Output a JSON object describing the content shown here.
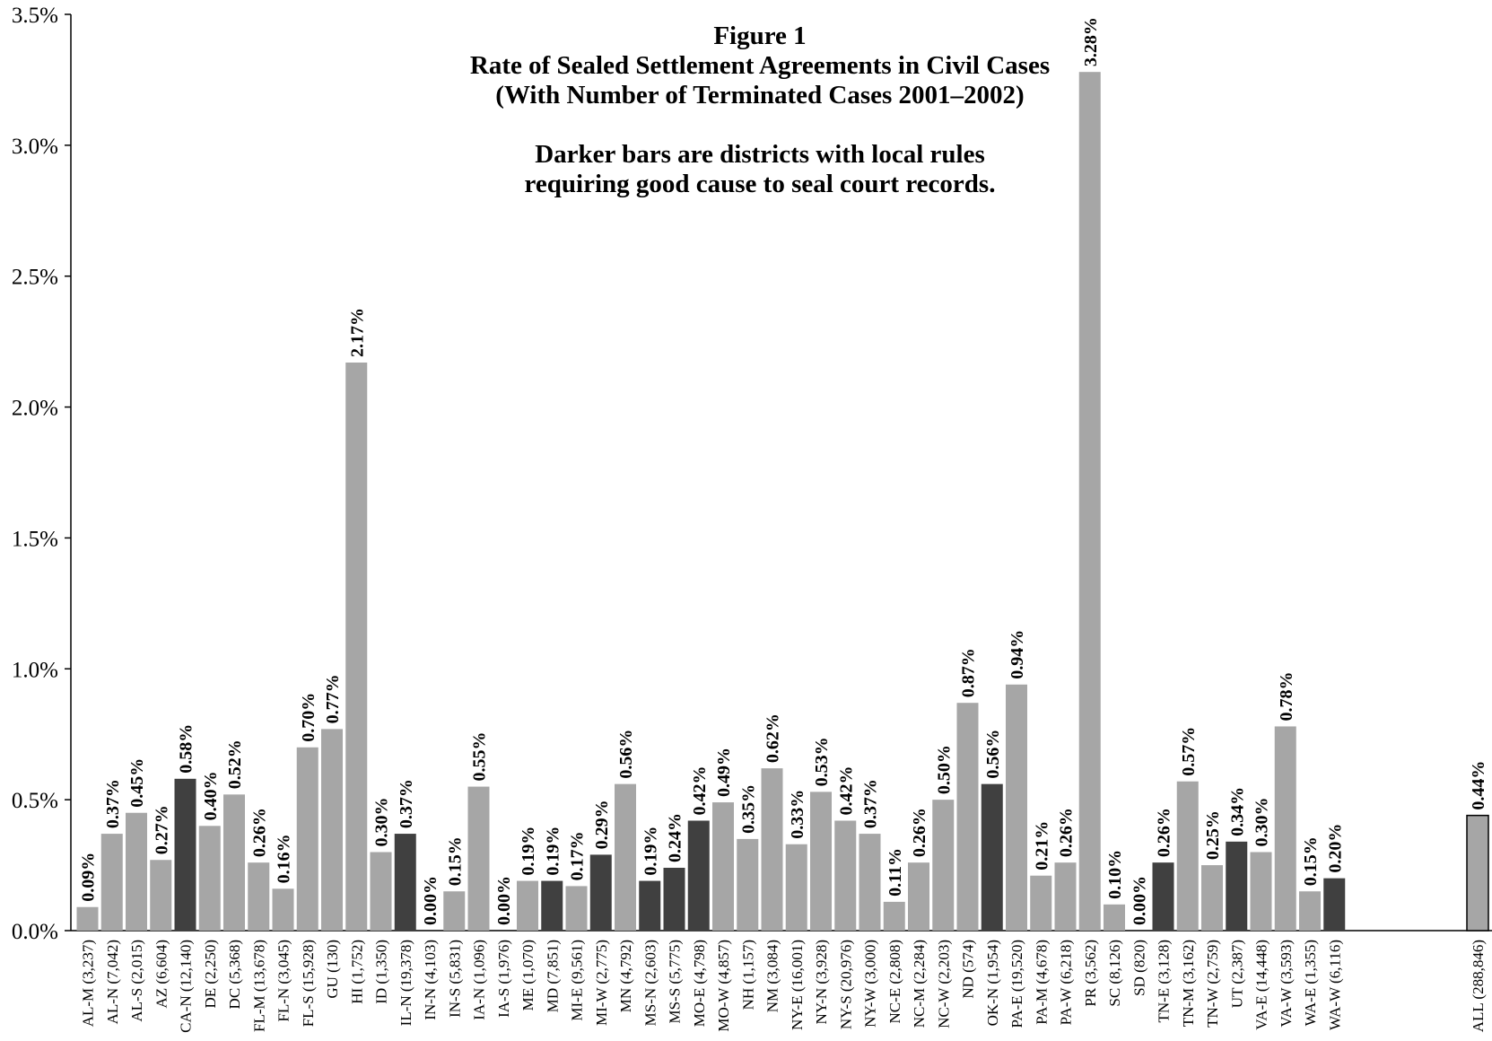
{
  "chart_data": {
    "type": "bar",
    "title_lines": [
      "Figure 1",
      "Rate of Sealed Settlement Agreements in Civil Cases",
      "(With Number of Terminated Cases 2001–2002)",
      "",
      "Darker bars are districts with local rules",
      "requiring good cause to seal court records."
    ],
    "xlabel": "",
    "ylabel": "",
    "ylim": [
      0,
      3.5
    ],
    "y_ticks": [
      "0.0%",
      "0.5%",
      "1.0%",
      "1.5%",
      "2.0%",
      "2.5%",
      "3.0%",
      "3.5%"
    ],
    "grid": false,
    "legend": "none",
    "colors": {
      "light": "#a6a6a6",
      "dark": "#404040",
      "all_fill": "#a6a6a6",
      "all_border": "#000000"
    },
    "bars": [
      {
        "label": "AL-M (3,237)",
        "value": 0.09,
        "text": "0.09%",
        "dark": false
      },
      {
        "label": "AL-N (7,042)",
        "value": 0.37,
        "text": "0.37%",
        "dark": false
      },
      {
        "label": "AL-S (2,015)",
        "value": 0.45,
        "text": "0.45%",
        "dark": false
      },
      {
        "label": "AZ (6,604)",
        "value": 0.27,
        "text": "0.27%",
        "dark": false
      },
      {
        "label": "CA-N (12,140)",
        "value": 0.58,
        "text": "0.58%",
        "dark": true
      },
      {
        "label": "DE (2,250)",
        "value": 0.4,
        "text": "0.40%",
        "dark": false
      },
      {
        "label": "DC (5,368)",
        "value": 0.52,
        "text": "0.52%",
        "dark": false
      },
      {
        "label": "FL-M (13,678)",
        "value": 0.26,
        "text": "0.26%",
        "dark": false
      },
      {
        "label": "FL-N (3,045)",
        "value": 0.16,
        "text": "0.16%",
        "dark": false
      },
      {
        "label": "FL-S (15,928)",
        "value": 0.7,
        "text": "0.70%",
        "dark": false
      },
      {
        "label": "GU (130)",
        "value": 0.77,
        "text": "0.77%",
        "dark": false
      },
      {
        "label": "HI (1,752)",
        "value": 2.17,
        "text": "2.17%",
        "dark": false
      },
      {
        "label": "ID (1,350)",
        "value": 0.3,
        "text": "0.30%",
        "dark": false
      },
      {
        "label": "IL-N (19,378)",
        "value": 0.37,
        "text": "0.37%",
        "dark": true
      },
      {
        "label": "IN-N (4,103)",
        "value": 0.0,
        "text": "0.00%",
        "dark": false
      },
      {
        "label": "IN-S (5,831)",
        "value": 0.15,
        "text": "0.15%",
        "dark": false
      },
      {
        "label": "IA-N (1,096)",
        "value": 0.55,
        "text": "0.55%",
        "dark": false
      },
      {
        "label": "IA-S (1,976)",
        "value": 0.0,
        "text": "0.00%",
        "dark": false
      },
      {
        "label": "ME (1,070)",
        "value": 0.19,
        "text": "0.19%",
        "dark": false
      },
      {
        "label": "MD (7,851)",
        "value": 0.19,
        "text": "0.19%",
        "dark": true
      },
      {
        "label": "MI-E (9,561)",
        "value": 0.17,
        "text": "0.17%",
        "dark": false
      },
      {
        "label": "MI-W (2,775)",
        "value": 0.29,
        "text": "0.29%",
        "dark": true
      },
      {
        "label": "MN (4,792)",
        "value": 0.56,
        "text": "0.56%",
        "dark": false
      },
      {
        "label": "MS-N (2,603)",
        "value": 0.19,
        "text": "0.19%",
        "dark": true
      },
      {
        "label": "MS-S (5,775)",
        "value": 0.24,
        "text": "0.24%",
        "dark": true
      },
      {
        "label": "MO-E (4,798)",
        "value": 0.42,
        "text": "0.42%",
        "dark": true
      },
      {
        "label": "MO-W (4,857)",
        "value": 0.49,
        "text": "0.49%",
        "dark": false
      },
      {
        "label": "NH (1,157)",
        "value": 0.35,
        "text": "0.35%",
        "dark": false
      },
      {
        "label": "NM (3,084)",
        "value": 0.62,
        "text": "0.62%",
        "dark": false
      },
      {
        "label": "NY-E (16,001)",
        "value": 0.33,
        "text": "0.33%",
        "dark": false
      },
      {
        "label": "NY-N (3,928)",
        "value": 0.53,
        "text": "0.53%",
        "dark": false
      },
      {
        "label": "NY-S (20,976)",
        "value": 0.42,
        "text": "0.42%",
        "dark": false
      },
      {
        "label": "NY-W (3,000)",
        "value": 0.37,
        "text": "0.37%",
        "dark": false
      },
      {
        "label": "NC-E (2,808)",
        "value": 0.11,
        "text": "0.11%",
        "dark": false
      },
      {
        "label": "NC-M (2,284)",
        "value": 0.26,
        "text": "0.26%",
        "dark": false
      },
      {
        "label": "NC-W (2,203)",
        "value": 0.5,
        "text": "0.50%",
        "dark": false
      },
      {
        "label": "ND (574)",
        "value": 0.87,
        "text": "0.87%",
        "dark": false
      },
      {
        "label": "OK-N (1,954)",
        "value": 0.56,
        "text": "0.56%",
        "dark": true
      },
      {
        "label": "PA-E (19,520)",
        "value": 0.94,
        "text": "0.94%",
        "dark": false
      },
      {
        "label": "PA-M (4,678)",
        "value": 0.21,
        "text": "0.21%",
        "dark": false
      },
      {
        "label": "PA-W (6,218)",
        "value": 0.26,
        "text": "0.26%",
        "dark": false
      },
      {
        "label": "PR (3,562)",
        "value": 3.28,
        "text": "3.28%",
        "dark": false
      },
      {
        "label": "SC (8,126)",
        "value": 0.1,
        "text": "0.10%",
        "dark": false
      },
      {
        "label": "SD (820)",
        "value": 0.0,
        "text": "0.00%",
        "dark": false
      },
      {
        "label": "TN-E (3,128)",
        "value": 0.26,
        "text": "0.26%",
        "dark": true
      },
      {
        "label": "TN-M (3,162)",
        "value": 0.57,
        "text": "0.57%",
        "dark": false
      },
      {
        "label": "TN-W (2,759)",
        "value": 0.25,
        "text": "0.25%",
        "dark": false
      },
      {
        "label": "UT (2,387)",
        "value": 0.34,
        "text": "0.34%",
        "dark": true
      },
      {
        "label": "VA-E (14,448)",
        "value": 0.3,
        "text": "0.30%",
        "dark": false
      },
      {
        "label": "VA-W (3,593)",
        "value": 0.78,
        "text": "0.78%",
        "dark": false
      },
      {
        "label": "WA-E (1,355)",
        "value": 0.15,
        "text": "0.15%",
        "dark": false
      },
      {
        "label": "WA-W (6,116)",
        "value": 0.2,
        "text": "0.20%",
        "dark": true
      },
      {
        "label": "ALL (288,846)",
        "value": 0.44,
        "text": "0.44%",
        "dark": false,
        "summary": true
      }
    ]
  }
}
